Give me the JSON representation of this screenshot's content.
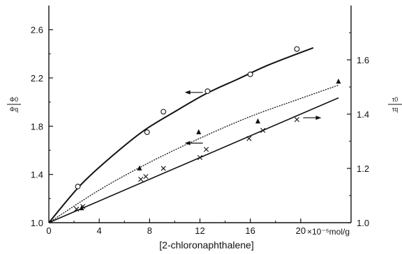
{
  "chart_data": {
    "type": "scatter",
    "xlabel": "[2-chloronaphthalene]",
    "x_unit": "×10⁻⁵mol/g",
    "xlim": [
      0,
      24
    ],
    "x_ticks": [
      "0",
      "4",
      "8",
      "12",
      "16",
      "20"
    ],
    "ylim": [
      1.0,
      2.8
    ],
    "y_ticks": [
      "1.0",
      "1.4",
      "1.8",
      "2.2",
      "2.6"
    ],
    "y_left_label": {
      "num": "Φ0",
      "den": "Φq"
    },
    "y2lim": [
      1.0,
      1.8
    ],
    "y2_ticks": [
      "1.0",
      "1.2",
      "1.4",
      "1.6"
    ],
    "y_right_label": {
      "num": "τ0",
      "den": "τq"
    },
    "series": [
      {
        "marker": "circle",
        "axis": "left",
        "points": [
          [
            2.3,
            1.3
          ],
          [
            7.8,
            1.75
          ],
          [
            9.1,
            1.92
          ],
          [
            12.6,
            2.09
          ],
          [
            16.0,
            2.23
          ],
          [
            19.7,
            2.44
          ]
        ],
        "curve": [
          [
            0,
            1.0
          ],
          [
            2.5,
            1.31
          ],
          [
            5,
            1.55
          ],
          [
            7.5,
            1.76
          ],
          [
            10,
            1.92
          ],
          [
            12.5,
            2.07
          ],
          [
            15,
            2.19
          ],
          [
            17.5,
            2.31
          ],
          [
            21,
            2.45
          ]
        ]
      },
      {
        "marker": "triangle",
        "axis": "left",
        "points": [
          [
            2.6,
            1.12
          ],
          [
            7.2,
            1.45
          ],
          [
            11.9,
            1.75
          ],
          [
            16.6,
            1.84
          ],
          [
            23.0,
            2.17
          ]
        ],
        "curve": [
          [
            0,
            1.0
          ],
          [
            4,
            1.27
          ],
          [
            8,
            1.5
          ],
          [
            12,
            1.7
          ],
          [
            16,
            1.88
          ],
          [
            20,
            2.03
          ],
          [
            23,
            2.14
          ]
        ]
      },
      {
        "marker": "x",
        "axis": "right",
        "points": [
          [
            2.2,
            1.05
          ],
          [
            2.7,
            1.06
          ],
          [
            7.3,
            1.16
          ],
          [
            7.7,
            1.17
          ],
          [
            9.1,
            1.2
          ],
          [
            12.0,
            1.24
          ],
          [
            12.5,
            1.27
          ],
          [
            15.9,
            1.31
          ],
          [
            17.0,
            1.34
          ],
          [
            19.7,
            1.38
          ]
        ],
        "curve": [
          [
            0,
            1.0
          ],
          [
            23,
            1.46
          ]
        ]
      }
    ],
    "arrows": [
      {
        "x": 10.9,
        "y": 2.08,
        "direction": "left"
      },
      {
        "x": 10.9,
        "y": 1.66,
        "direction": "left"
      },
      {
        "x": 20.2,
        "y": 1.87,
        "direction": "right"
      }
    ]
  }
}
